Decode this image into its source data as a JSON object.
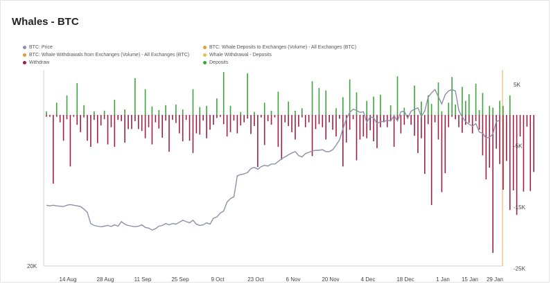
{
  "title": "Whales - BTC",
  "legend": [
    {
      "label": "BTC: Price",
      "color": "#8b8fa8"
    },
    {
      "label": "BTC: Whale Deposits to Exchanges (Volume) - All Exchanges (BTC)",
      "color": "#e39a3b"
    },
    {
      "label": "BTC: Whale Withdrawals from Exchanges (Volume) - All Exchanges (BTC)",
      "color": "#e39a3b"
    },
    {
      "label": "Whale Withdrawal - Deposits",
      "color": "#d9c84a"
    },
    {
      "label": "Withdraw",
      "color": "#9e1f43"
    },
    {
      "label": "Deposits",
      "color": "#3aa63a"
    }
  ],
  "chart_data": {
    "type": "bar",
    "x_ticks": [
      "14 Aug",
      "28 Aug",
      "11 Sep",
      "25 Sep",
      "9 Oct",
      "23 Oct",
      "6 Nov",
      "20 Nov",
      "4 Dec",
      "18 Dec",
      "1 Jan",
      "15 Jan",
      "29 Jan"
    ],
    "y_right_ticks": [
      "5K",
      "-5K",
      "-15K",
      "-25K"
    ],
    "y_right_range": [
      -25000,
      5000
    ],
    "y_left_ticks": [
      "20K"
    ],
    "price_series": {
      "name": "BTC: Price",
      "color": "#8b8fa8",
      "values": [
        29300,
        29200,
        29300,
        29200,
        29150,
        29100,
        29300,
        29400,
        29300,
        29200,
        29100,
        28700,
        28200,
        26500,
        26200,
        26100,
        26000,
        26100,
        26200,
        26050,
        26300,
        26100,
        26800,
        26400,
        26200,
        26100,
        26000,
        26100,
        26300,
        25900,
        25800,
        25500,
        25700,
        26100,
        26200,
        26500,
        26300,
        26500,
        26400,
        26700,
        27000,
        26800,
        26600,
        27000,
        26400,
        26200,
        26300,
        26600,
        26400,
        27300,
        27500,
        28100,
        28400,
        29800,
        30300,
        30600,
        33800,
        34000,
        34100,
        34300,
        34900,
        35100,
        34800,
        35200,
        35400,
        35300,
        35600,
        35600,
        36000,
        36400,
        36700,
        37000,
        37300,
        37500,
        36900,
        36700,
        37200,
        37400,
        37600,
        37700,
        37700,
        37800,
        37500,
        37500,
        37800,
        38500,
        39300,
        41000,
        42500,
        43500,
        44000,
        43800,
        43500,
        43600,
        42000,
        42800,
        42700,
        41800,
        42100,
        42100,
        42300,
        42200,
        43000,
        42200,
        43600,
        43700,
        42600,
        43700,
        44000,
        44200,
        42900,
        43700,
        45800,
        46500,
        47000,
        45900,
        44800,
        46200,
        46800,
        47000,
        46800,
        43800,
        42800,
        42100,
        41700,
        41400,
        41800,
        40500,
        40300,
        39600,
        39700,
        40200,
        42100,
        42300
      ],
      "ylim": [
        20000,
        50000
      ]
    },
    "series": [
      {
        "name": "Withdraw",
        "color": "#9e1f43",
        "values": [
          -300,
          -300,
          -11200,
          -300,
          -1200,
          -4200,
          -700,
          -8400,
          -300,
          -1600,
          -2800,
          -400,
          -4200,
          -5200,
          -800,
          -4600,
          -1700,
          -700,
          -4800,
          -2000,
          -5200,
          -800,
          -1000,
          -4500,
          -2300,
          -2300,
          -1000,
          -2300,
          -2600,
          -3800,
          -2000,
          -4800,
          -1200,
          -2200,
          -3700,
          -900,
          -6000,
          -800,
          -1300,
          -3000,
          -4300,
          -800,
          -4200,
          -6200,
          -3000,
          -3200,
          -900,
          -3800,
          -2400,
          -1600,
          -500,
          -300,
          -1500,
          -3500,
          -2800,
          -900,
          -3000,
          -1700,
          -1200,
          -600,
          -3100,
          -1800,
          -8500,
          -400,
          -4900,
          -1000,
          -1600,
          -400,
          -5200,
          -7300,
          -1200,
          -1800,
          -2800,
          -4000,
          -1900,
          -400,
          -2000,
          -1200,
          -6700,
          -2300,
          -1500,
          -2000,
          -4000,
          -1200,
          -2400,
          -3500,
          -600,
          -8400,
          -4500,
          -2400,
          -700,
          -7400,
          -4000,
          -3500,
          -3800,
          -2500,
          -4300,
          -5400,
          -2000,
          -1200,
          -2000,
          -1000,
          -5200,
          -900,
          -3000,
          -1600,
          -600,
          -1600,
          -3400,
          -6200,
          -3800,
          -9600,
          -1500,
          -14700,
          -1200,
          -4000,
          -12600,
          -9500,
          -2000,
          -300,
          -700,
          -2000,
          -2900,
          -1600,
          -1300,
          -3000,
          -1000,
          -2400,
          -6600,
          -10500,
          -8600,
          -22500,
          -5500,
          -8000,
          -12200,
          -7500,
          -15500,
          -12300,
          -16300,
          -3500,
          -12500,
          -1900,
          -12400,
          -9300
        ],
        "x_index": [
          0,
          1,
          2,
          3,
          4,
          5,
          6,
          7,
          8,
          9,
          10,
          11,
          12,
          13,
          14,
          15,
          16,
          17,
          18,
          19,
          20,
          21,
          22,
          23,
          24,
          25,
          26,
          27,
          28,
          29,
          30,
          31,
          32,
          33,
          34,
          35,
          36,
          37,
          38,
          39,
          40,
          41,
          42,
          43,
          44,
          45,
          46,
          47,
          48,
          49,
          50,
          51,
          52,
          53,
          54,
          55,
          56,
          57,
          58,
          59,
          60,
          61,
          62,
          63,
          64,
          65,
          66,
          67,
          68,
          69,
          70,
          71,
          72,
          73,
          74,
          75,
          76,
          77,
          78,
          79,
          80,
          81,
          82,
          83,
          84,
          85,
          86,
          87,
          88,
          89,
          90,
          91,
          92,
          93,
          94,
          95,
          96,
          97,
          98,
          99,
          100,
          101,
          102,
          103,
          104,
          105,
          106,
          107,
          108,
          109,
          110,
          111,
          112,
          113,
          114,
          115,
          116,
          117,
          118,
          119,
          120,
          121,
          122,
          123,
          124,
          125,
          126,
          127,
          128,
          129,
          130,
          131,
          132,
          133,
          134,
          135,
          136,
          137,
          138,
          139,
          140,
          141,
          142,
          143
        ]
      },
      {
        "name": "Deposits",
        "color": "#3aa63a",
        "values": [
          600,
          2000,
          3200,
          5200,
          1600,
          600,
          700,
          2500,
          900,
          6000,
          4200,
          1400,
          800,
          1600,
          1700,
          900,
          4200,
          1300,
          1500,
          2700,
          7000,
          1500,
          500,
          6800,
          500,
          2000,
          700,
          3800,
          2200,
          700,
          1100,
          5500,
          4400,
          4000,
          1100,
          2900,
          5800,
          3700,
          2300,
          3000,
          3300,
          1600,
          6300,
          1200,
          4800,
          2200,
          3200,
          1800,
          5300,
          600,
          2000,
          6200,
          1700,
          4600,
          2300,
          3400,
          5100,
          800,
          3600,
          1500,
          1200,
          2300,
          1500,
          3200
        ],
        "x_index": [
          0,
          3,
          6,
          9,
          11,
          14,
          17,
          20,
          23,
          26,
          29,
          31,
          33,
          35,
          38,
          40,
          43,
          45,
          47,
          50,
          52,
          54,
          57,
          59,
          61,
          64,
          66,
          68,
          71,
          73,
          75,
          78,
          80,
          82,
          85,
          87,
          89,
          91,
          94,
          96,
          98,
          101,
          103,
          105,
          108,
          110,
          112,
          113,
          115,
          116,
          118,
          119,
          120,
          122,
          123,
          124,
          126,
          127,
          128,
          130,
          131,
          133,
          134,
          136
        ]
      }
    ]
  }
}
